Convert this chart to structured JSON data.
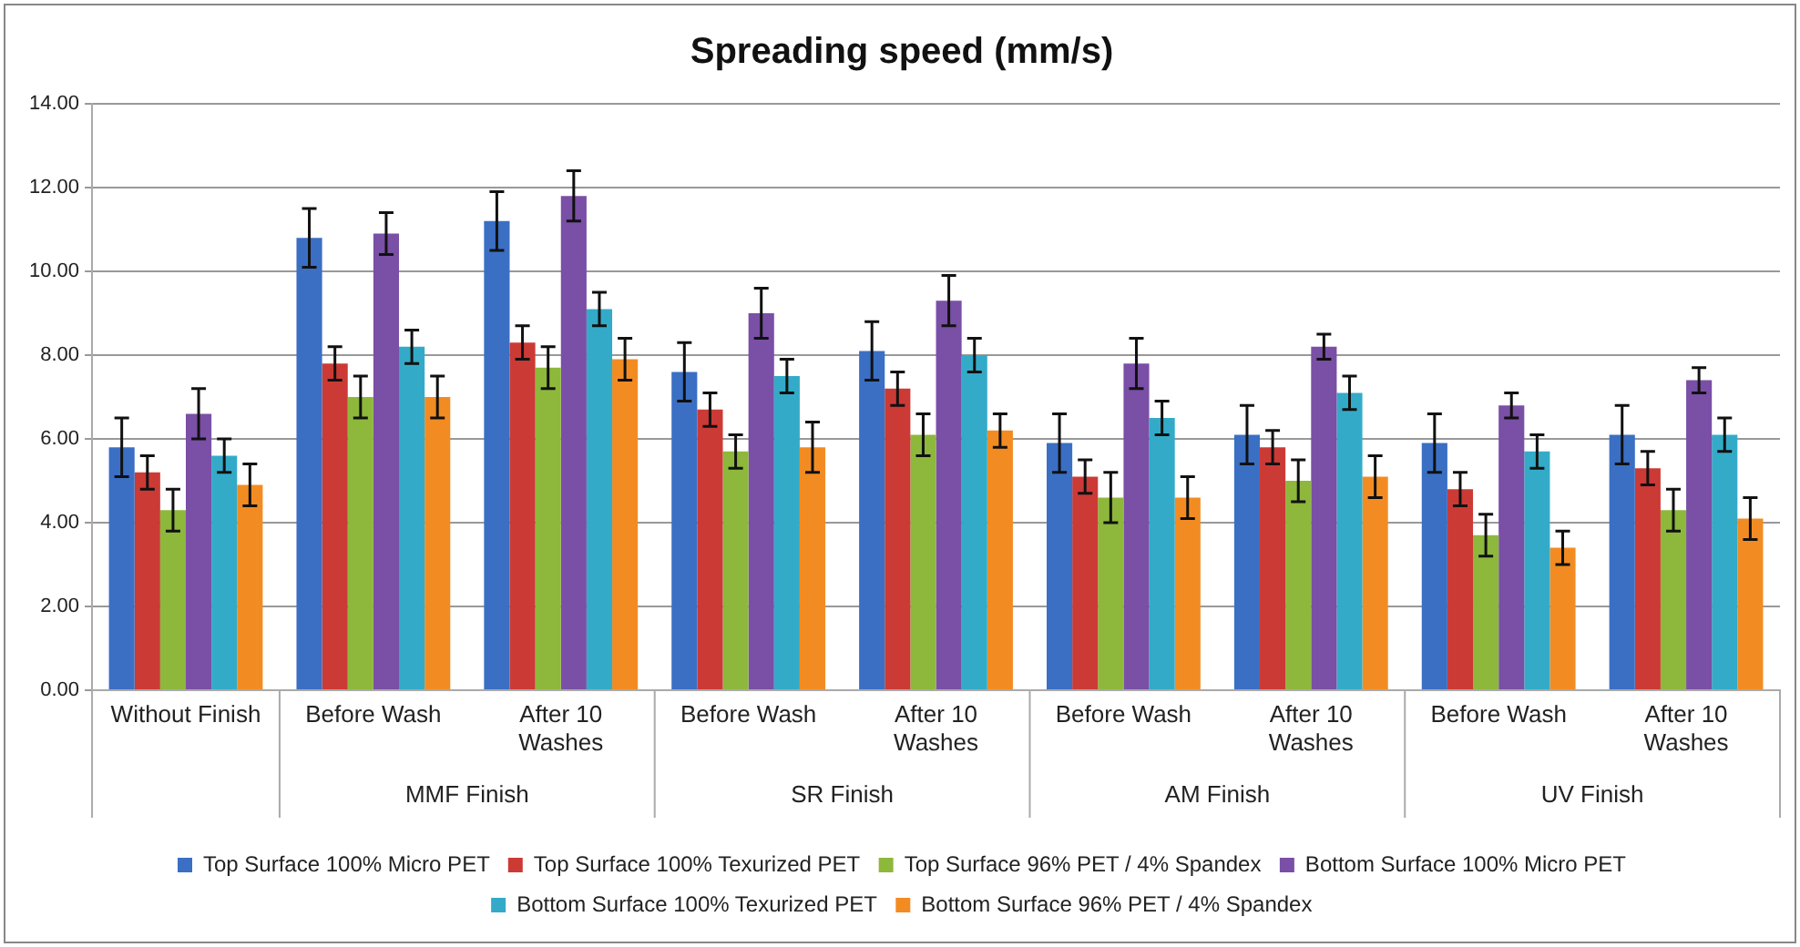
{
  "chart_data": {
    "type": "bar",
    "title": "Spreading speed (mm/s)",
    "categories": [
      "Without Finish",
      "Before Wash",
      "After  10 Washes",
      "Before Wash",
      "After  10 Washes",
      "Before Wash",
      "After  10 Washes",
      "Before Wash",
      "After  10 Washes"
    ],
    "annotations": [
      "MMF Finish",
      "SR Finish",
      "AM Finish",
      "UV Finish"
    ],
    "series": [
      {
        "name": "Top Surface 100% Micro PET",
        "color": "#3a6fc4",
        "values": [
          5.8,
          10.8,
          11.2,
          7.6,
          8.1,
          5.9,
          6.1,
          5.9,
          6.1
        ],
        "errors": [
          0.7,
          0.7,
          0.7,
          0.7,
          0.7,
          0.7,
          0.7,
          0.7,
          0.7
        ]
      },
      {
        "name": "Top Surface 100% Texurized PET",
        "color": "#cc3a36",
        "values": [
          5.2,
          7.8,
          8.3,
          6.7,
          7.2,
          5.1,
          5.8,
          4.8,
          5.3
        ],
        "errors": [
          0.4,
          0.4,
          0.4,
          0.4,
          0.4,
          0.4,
          0.4,
          0.4,
          0.4
        ]
      },
      {
        "name": "Top Surface 96% PET / 4% Spandex",
        "color": "#8db83c",
        "values": [
          4.3,
          7.0,
          7.7,
          5.7,
          6.1,
          4.6,
          5.0,
          3.7,
          4.3
        ],
        "errors": [
          0.5,
          0.5,
          0.5,
          0.4,
          0.5,
          0.6,
          0.5,
          0.5,
          0.5
        ]
      },
      {
        "name": "Bottom Surface 100% Micro PET",
        "color": "#7a4fa6",
        "values": [
          6.6,
          10.9,
          11.8,
          9.0,
          9.3,
          7.8,
          8.2,
          6.8,
          7.4
        ],
        "errors": [
          0.6,
          0.5,
          0.6,
          0.6,
          0.6,
          0.6,
          0.3,
          0.3,
          0.3
        ]
      },
      {
        "name": "Bottom Surface 100% Texurized PET",
        "color": "#33abc8",
        "values": [
          5.6,
          8.2,
          9.1,
          7.5,
          8.0,
          6.5,
          7.1,
          5.7,
          6.1
        ],
        "errors": [
          0.4,
          0.4,
          0.4,
          0.4,
          0.4,
          0.4,
          0.4,
          0.4,
          0.4
        ]
      },
      {
        "name": "Bottom Surface 96% PET / 4% Spandex",
        "color": "#f28c22",
        "values": [
          4.9,
          7.0,
          7.9,
          5.8,
          6.2,
          4.6,
          5.1,
          3.4,
          4.1
        ],
        "errors": [
          0.5,
          0.5,
          0.5,
          0.6,
          0.4,
          0.5,
          0.5,
          0.4,
          0.5
        ]
      }
    ],
    "ylim": [
      0,
      14
    ],
    "yticks": [
      {
        "value": 0,
        "label": "0.00"
      },
      {
        "value": 2,
        "label": "2.00"
      },
      {
        "value": 4,
        "label": "4.00"
      },
      {
        "value": 6,
        "label": "6.00"
      },
      {
        "value": 8,
        "label": "8.00"
      },
      {
        "value": 10,
        "label": "10.00"
      },
      {
        "value": 12,
        "label": "12.00"
      },
      {
        "value": 14,
        "label": "14.00"
      }
    ],
    "grid": "y",
    "legend": "bottom"
  }
}
